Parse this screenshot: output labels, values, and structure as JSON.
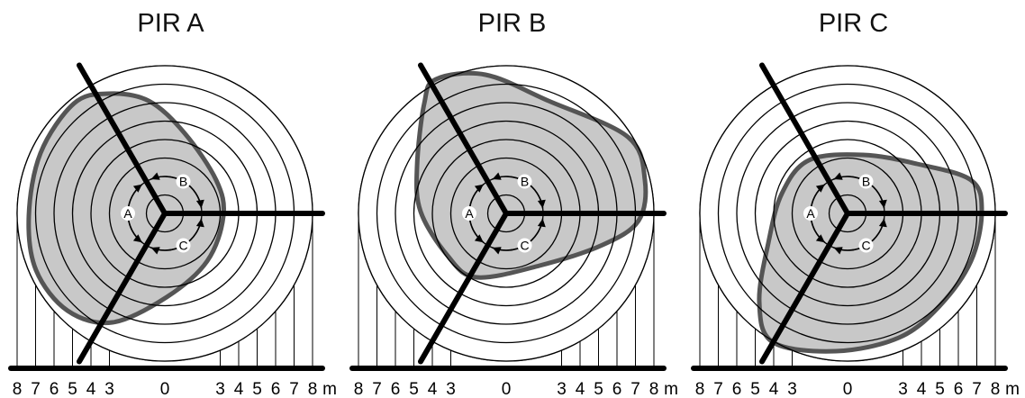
{
  "panels": [
    {
      "title": "PIR A",
      "highlight": "A"
    },
    {
      "title": "PIR B",
      "highlight": "B"
    },
    {
      "title": "PIR C",
      "highlight": "C"
    }
  ],
  "scale": {
    "left_labels": [
      "8",
      "7",
      "6",
      "5",
      "4",
      "3"
    ],
    "center_label": "0",
    "right_labels": [
      "3",
      "4",
      "5",
      "6",
      "7",
      "8"
    ],
    "unit": "m"
  },
  "sensor_labels": [
    "A",
    "B",
    "C"
  ],
  "colors": {
    "zone_fill": "#c8c8c8",
    "zone_outline": "#555555",
    "line": "#000000",
    "background": "#ffffff"
  }
}
